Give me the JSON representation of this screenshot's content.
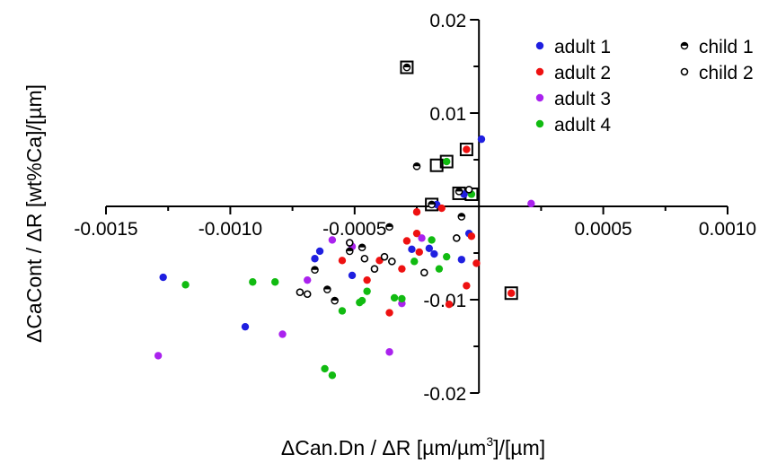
{
  "chart_data": {
    "type": "scatter",
    "xlabel": "ΔCan.Dn / ΔR [µm/µm",
    "xlabel_sup": "3",
    "xlabel_tail": "]/[µm]",
    "ylabel": "ΔCaCont / ΔR [wt%Ca]/[µm]",
    "xlim": [
      -0.0015,
      0.001
    ],
    "ylim": [
      -0.02,
      0.02
    ],
    "x_ticks": [
      {
        "value": -0.0015,
        "label": "-0.0015"
      },
      {
        "value": -0.001,
        "label": "-0.0010"
      },
      {
        "value": -0.0005,
        "label": "-0.0005"
      },
      {
        "value": 0.0005,
        "label": "0.0005"
      },
      {
        "value": 0.001,
        "label": "0.0010"
      }
    ],
    "y_ticks": [
      {
        "value": 0.02,
        "label": "0.02"
      },
      {
        "value": 0.01,
        "label": "0.01"
      },
      {
        "value": -0.01,
        "label": "-0.01"
      },
      {
        "value": -0.02,
        "label": "-0.02"
      }
    ],
    "legend_position": "top-right",
    "series": [
      {
        "name": "adult 1",
        "marker": "dot",
        "color": "#1f1fe0",
        "points": [
          [
            -0.00127,
            -0.0076
          ],
          [
            -0.00094,
            -0.0129
          ],
          [
            -0.00064,
            -0.0048
          ],
          [
            -0.00051,
            -0.0074
          ],
          [
            -0.00066,
            -0.0056
          ],
          [
            -0.0002,
            -0.0045
          ],
          [
            -0.00027,
            -0.0046
          ],
          [
            -0.00018,
            -0.0051
          ],
          [
            -0.00017,
            0.0002
          ],
          [
            -7e-05,
            -0.0057
          ],
          [
            -4e-05,
            -0.0029
          ],
          [
            1e-05,
            0.0072
          ],
          [
            -6e-05,
            0.0013
          ]
        ]
      },
      {
        "name": "adult 2",
        "marker": "dot",
        "color": "#ee1111",
        "points": [
          [
            -0.00025,
            -0.0006
          ],
          [
            -0.00055,
            -0.0058
          ],
          [
            -0.00045,
            -0.0079
          ],
          [
            -0.0004,
            -0.0058
          ],
          [
            -0.00036,
            -0.0114
          ],
          [
            -0.00031,
            -0.0067
          ],
          [
            -0.00029,
            -0.0037
          ],
          [
            -0.00025,
            -0.0029
          ],
          [
            -0.00024,
            -0.0049
          ],
          [
            -0.00015,
            -0.0002
          ],
          [
            -0.00012,
            -0.0105
          ],
          [
            -5e-05,
            -0.0085
          ],
          [
            -3e-05,
            -0.0032
          ],
          [
            -1e-05,
            -0.0061
          ],
          [
            -5e-05,
            0.0061
          ],
          [
            0.00013,
            -0.0093
          ]
        ]
      },
      {
        "name": "adult 3",
        "marker": "dot",
        "color": "#aa22ee",
        "points": [
          [
            -0.00129,
            -0.016
          ],
          [
            -0.00079,
            -0.0137
          ],
          [
            -0.00069,
            -0.0079
          ],
          [
            -0.00059,
            -0.0036
          ],
          [
            -0.00052,
            -0.0039
          ],
          [
            -0.00051,
            -0.0043
          ],
          [
            -0.00036,
            -0.0156
          ],
          [
            -0.00031,
            -0.0104
          ],
          [
            -0.00023,
            -0.0034
          ],
          [
            0.00021,
            0.0003
          ]
        ]
      },
      {
        "name": "adult 4",
        "marker": "dot",
        "color": "#11bb11",
        "points": [
          [
            -0.00118,
            -0.0084
          ],
          [
            -0.00091,
            -0.0081
          ],
          [
            -0.00082,
            -0.0081
          ],
          [
            -0.00062,
            -0.0174
          ],
          [
            -0.00059,
            -0.0181
          ],
          [
            -0.00055,
            -0.0112
          ],
          [
            -0.00048,
            -0.0103
          ],
          [
            -0.00047,
            -0.0101
          ],
          [
            -0.00045,
            -0.0091
          ],
          [
            -0.00034,
            -0.0098
          ],
          [
            -0.00031,
            -0.0099
          ],
          [
            -0.00026,
            -0.0059
          ],
          [
            -0.00019,
            -0.0036
          ],
          [
            -0.00016,
            -0.0067
          ],
          [
            -0.00013,
            -0.0054
          ],
          [
            -0.00013,
            0.0048
          ],
          [
            -3e-05,
            0.0013
          ]
        ]
      },
      {
        "name": "child 1",
        "marker": "half",
        "color": "#000000",
        "points": [
          [
            -0.00066,
            -0.0068
          ],
          [
            -0.00061,
            -0.0089
          ],
          [
            -0.00058,
            -0.0101
          ],
          [
            -0.00052,
            -0.0048
          ],
          [
            -0.00047,
            -0.0044
          ],
          [
            -0.00036,
            -0.0022
          ],
          [
            -0.00029,
            0.0149
          ],
          [
            -0.00025,
            0.0043
          ],
          [
            -0.00019,
            0.0002
          ],
          [
            -7e-05,
            -0.0011
          ],
          [
            -8e-05,
            0.0016
          ]
        ]
      },
      {
        "name": "child 2",
        "marker": "ring",
        "color": "#000000",
        "points": [
          [
            -0.00072,
            -0.0092
          ],
          [
            -0.00069,
            -0.0094
          ],
          [
            -0.00052,
            -0.0039
          ],
          [
            -0.00046,
            -0.0056
          ],
          [
            -0.00042,
            -0.0067
          ],
          [
            -0.00038,
            -0.0054
          ],
          [
            -0.00035,
            -0.0059
          ],
          [
            -0.00022,
            -0.0071
          ],
          [
            -9e-05,
            -0.0034
          ],
          [
            -4e-05,
            0.0018
          ]
        ]
      }
    ],
    "boxed_points": [
      [
        -0.00029,
        0.0149
      ],
      [
        -0.00017,
        0.0044
      ],
      [
        -0.00019,
        0.0002
      ],
      [
        -5e-05,
        0.0061
      ],
      [
        -0.00013,
        0.0048
      ],
      [
        -8e-05,
        0.0014
      ],
      [
        -3e-05,
        0.0013
      ],
      [
        0.00013,
        -0.0093
      ]
    ]
  }
}
